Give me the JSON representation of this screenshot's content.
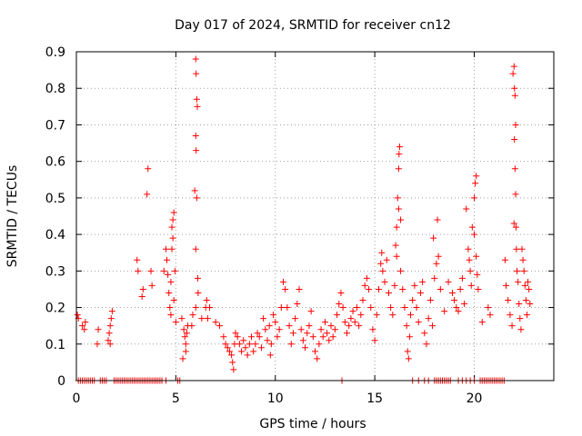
{
  "chart_data": {
    "type": "scatter",
    "title": "Day 017 of 2024, SRMTID for receiver cn12",
    "xlabel": "GPS time / hours",
    "ylabel": "SRMTID / TECUs",
    "xlim": [
      0,
      24
    ],
    "ylim": [
      0,
      0.9
    ],
    "xticks": [
      0,
      5,
      10,
      15,
      20
    ],
    "xtick_labels": [
      "0",
      "5",
      "10",
      "15",
      "20"
    ],
    "yticks": [
      0,
      0.1,
      0.2,
      0.3,
      0.4,
      0.5,
      0.6,
      0.7,
      0.8,
      0.9
    ],
    "ytick_labels": [
      "0",
      "0.1",
      "0.2",
      "0.3",
      "0.4",
      "0.5",
      "0.6",
      "0.7",
      "0.8",
      "0.9"
    ],
    "grid": true,
    "marker": "+",
    "marker_color": "#ff0000",
    "series": [
      {
        "name": "SRMTID",
        "points": [
          [
            0.05,
            0.18
          ],
          [
            0.1,
            0.17
          ],
          [
            0.3,
            0.15
          ],
          [
            0.4,
            0.14
          ],
          [
            0.45,
            0.16
          ],
          [
            1.1,
            0.14
          ],
          [
            1.05,
            0.1
          ],
          [
            1.6,
            0.11
          ],
          [
            1.65,
            0.13
          ],
          [
            1.7,
            0.15
          ],
          [
            1.75,
            0.17
          ],
          [
            1.8,
            0.19
          ],
          [
            1.7,
            0.1
          ],
          [
            3.05,
            0.33
          ],
          [
            3.1,
            0.3
          ],
          [
            3.3,
            0.23
          ],
          [
            3.35,
            0.25
          ],
          [
            3.55,
            0.51
          ],
          [
            3.6,
            0.58
          ],
          [
            3.75,
            0.3
          ],
          [
            3.8,
            0.26
          ],
          [
            4.4,
            0.3
          ],
          [
            4.5,
            0.36
          ],
          [
            4.55,
            0.33
          ],
          [
            4.6,
            0.29
          ],
          [
            4.65,
            0.24
          ],
          [
            4.7,
            0.2
          ],
          [
            4.75,
            0.18
          ],
          [
            4.8,
            0.42
          ],
          [
            4.85,
            0.44
          ],
          [
            4.9,
            0.46
          ],
          [
            4.85,
            0.39
          ],
          [
            4.8,
            0.36
          ],
          [
            4.75,
            0.27
          ],
          [
            4.9,
            0.22
          ],
          [
            4.95,
            0.3
          ],
          [
            5.0,
            0.16
          ],
          [
            5.3,
            0.17
          ],
          [
            5.4,
            0.14
          ],
          [
            5.45,
            0.12
          ],
          [
            5.5,
            0.1
          ],
          [
            5.55,
            0.13
          ],
          [
            5.6,
            0.15
          ],
          [
            5.35,
            0.06
          ],
          [
            5.5,
            0.08
          ],
          [
            6.0,
            0.88
          ],
          [
            6.02,
            0.84
          ],
          [
            6.05,
            0.77
          ],
          [
            6.08,
            0.75
          ],
          [
            6.0,
            0.67
          ],
          [
            6.02,
            0.63
          ],
          [
            5.95,
            0.52
          ],
          [
            6.05,
            0.5
          ],
          [
            6.0,
            0.36
          ],
          [
            6.1,
            0.28
          ],
          [
            6.12,
            0.24
          ],
          [
            6.0,
            0.2
          ],
          [
            5.85,
            0.18
          ],
          [
            5.8,
            0.15
          ],
          [
            6.3,
            0.17
          ],
          [
            6.5,
            0.2
          ],
          [
            6.55,
            0.22
          ],
          [
            6.6,
            0.17
          ],
          [
            6.7,
            0.2
          ],
          [
            7.0,
            0.16
          ],
          [
            7.2,
            0.15
          ],
          [
            7.4,
            0.12
          ],
          [
            7.5,
            0.1
          ],
          [
            7.6,
            0.09
          ],
          [
            7.7,
            0.08
          ],
          [
            7.8,
            0.07
          ],
          [
            7.85,
            0.05
          ],
          [
            7.9,
            0.03
          ],
          [
            7.95,
            0.1
          ],
          [
            8.0,
            0.13
          ],
          [
            8.1,
            0.12
          ],
          [
            8.2,
            0.1
          ],
          [
            8.3,
            0.08
          ],
          [
            8.4,
            0.11
          ],
          [
            8.5,
            0.09
          ],
          [
            8.6,
            0.07
          ],
          [
            8.7,
            0.1
          ],
          [
            8.8,
            0.12
          ],
          [
            8.9,
            0.08
          ],
          [
            9.0,
            0.1
          ],
          [
            9.1,
            0.13
          ],
          [
            9.2,
            0.12
          ],
          [
            9.3,
            0.09
          ],
          [
            9.4,
            0.17
          ],
          [
            9.5,
            0.14
          ],
          [
            9.6,
            0.11
          ],
          [
            9.7,
            0.15
          ],
          [
            9.75,
            0.07
          ],
          [
            9.8,
            0.1
          ],
          [
            9.9,
            0.18
          ],
          [
            10.0,
            0.16
          ],
          [
            10.1,
            0.12
          ],
          [
            10.2,
            0.14
          ],
          [
            10.3,
            0.2
          ],
          [
            10.4,
            0.27
          ],
          [
            10.5,
            0.25
          ],
          [
            10.6,
            0.2
          ],
          [
            10.7,
            0.15
          ],
          [
            10.8,
            0.1
          ],
          [
            10.9,
            0.13
          ],
          [
            11.0,
            0.17
          ],
          [
            11.1,
            0.21
          ],
          [
            11.2,
            0.25
          ],
          [
            11.3,
            0.14
          ],
          [
            11.4,
            0.11
          ],
          [
            11.5,
            0.09
          ],
          [
            11.6,
            0.13
          ],
          [
            11.7,
            0.15
          ],
          [
            11.8,
            0.19
          ],
          [
            11.9,
            0.12
          ],
          [
            12.0,
            0.08
          ],
          [
            12.1,
            0.06
          ],
          [
            12.2,
            0.1
          ],
          [
            12.3,
            0.14
          ],
          [
            12.4,
            0.12
          ],
          [
            12.5,
            0.16
          ],
          [
            12.6,
            0.13
          ],
          [
            12.7,
            0.11
          ],
          [
            12.8,
            0.15
          ],
          [
            12.9,
            0.12
          ],
          [
            13.0,
            0.14
          ],
          [
            13.1,
            0.18
          ],
          [
            13.2,
            0.21
          ],
          [
            13.3,
            0.24
          ],
          [
            13.4,
            0.2
          ],
          [
            13.5,
            0.16
          ],
          [
            13.6,
            0.13
          ],
          [
            13.7,
            0.15
          ],
          [
            13.8,
            0.17
          ],
          [
            13.9,
            0.19
          ],
          [
            14.0,
            0.16
          ],
          [
            14.1,
            0.2
          ],
          [
            14.2,
            0.15
          ],
          [
            14.3,
            0.18
          ],
          [
            14.4,
            0.22
          ],
          [
            14.5,
            0.26
          ],
          [
            14.6,
            0.28
          ],
          [
            14.7,
            0.25
          ],
          [
            14.8,
            0.2
          ],
          [
            14.9,
            0.14
          ],
          [
            15.0,
            0.11
          ],
          [
            15.1,
            0.18
          ],
          [
            15.2,
            0.25
          ],
          [
            15.3,
            0.32
          ],
          [
            15.35,
            0.35
          ],
          [
            15.4,
            0.3
          ],
          [
            15.5,
            0.27
          ],
          [
            15.6,
            0.33
          ],
          [
            15.7,
            0.24
          ],
          [
            15.8,
            0.2
          ],
          [
            15.9,
            0.18
          ],
          [
            16.0,
            0.26
          ],
          [
            16.05,
            0.37
          ],
          [
            16.1,
            0.42
          ],
          [
            16.15,
            0.5
          ],
          [
            16.2,
            0.58
          ],
          [
            16.22,
            0.62
          ],
          [
            16.25,
            0.64
          ],
          [
            16.2,
            0.47
          ],
          [
            16.3,
            0.44
          ],
          [
            16.1,
            0.34
          ],
          [
            16.3,
            0.3
          ],
          [
            16.4,
            0.25
          ],
          [
            16.5,
            0.2
          ],
          [
            16.6,
            0.15
          ],
          [
            16.65,
            0.08
          ],
          [
            16.7,
            0.06
          ],
          [
            16.75,
            0.12
          ],
          [
            16.8,
            0.18
          ],
          [
            16.9,
            0.22
          ],
          [
            17.0,
            0.26
          ],
          [
            17.1,
            0.2
          ],
          [
            17.2,
            0.16
          ],
          [
            17.3,
            0.24
          ],
          [
            17.4,
            0.27
          ],
          [
            17.5,
            0.13
          ],
          [
            17.6,
            0.1
          ],
          [
            17.7,
            0.17
          ],
          [
            17.8,
            0.22
          ],
          [
            17.9,
            0.15
          ],
          [
            17.95,
            0.39
          ],
          [
            18.0,
            0.28
          ],
          [
            18.1,
            0.32
          ],
          [
            18.15,
            0.44
          ],
          [
            18.2,
            0.34
          ],
          [
            18.3,
            0.25
          ],
          [
            18.5,
            0.19
          ],
          [
            18.7,
            0.27
          ],
          [
            18.9,
            0.24
          ],
          [
            19.0,
            0.22
          ],
          [
            19.1,
            0.2
          ],
          [
            19.2,
            0.19
          ],
          [
            19.3,
            0.25
          ],
          [
            19.4,
            0.28
          ],
          [
            19.5,
            0.21
          ],
          [
            19.6,
            0.47
          ],
          [
            19.7,
            0.36
          ],
          [
            19.75,
            0.33
          ],
          [
            19.8,
            0.3
          ],
          [
            19.85,
            0.26
          ],
          [
            19.9,
            0.42
          ],
          [
            20.0,
            0.5
          ],
          [
            20.05,
            0.54
          ],
          [
            20.1,
            0.56
          ],
          [
            20.0,
            0.4
          ],
          [
            20.1,
            0.34
          ],
          [
            20.15,
            0.29
          ],
          [
            20.2,
            0.25
          ],
          [
            20.4,
            0.16
          ],
          [
            20.7,
            0.2
          ],
          [
            20.8,
            0.18
          ],
          [
            21.55,
            0.33
          ],
          [
            21.6,
            0.26
          ],
          [
            21.7,
            0.22
          ],
          [
            21.8,
            0.18
          ],
          [
            21.9,
            0.15
          ],
          [
            21.95,
            0.84
          ],
          [
            22.0,
            0.86
          ],
          [
            22.02,
            0.8
          ],
          [
            22.05,
            0.78
          ],
          [
            22.08,
            0.7
          ],
          [
            22.02,
            0.66
          ],
          [
            22.05,
            0.58
          ],
          [
            22.08,
            0.51
          ],
          [
            22.0,
            0.43
          ],
          [
            22.1,
            0.42
          ],
          [
            22.12,
            0.36
          ],
          [
            22.15,
            0.3
          ],
          [
            22.2,
            0.27
          ],
          [
            22.25,
            0.21
          ],
          [
            22.3,
            0.17
          ],
          [
            22.35,
            0.14
          ],
          [
            22.4,
            0.36
          ],
          [
            22.45,
            0.33
          ],
          [
            22.5,
            0.3
          ],
          [
            22.55,
            0.26
          ],
          [
            22.6,
            0.22
          ],
          [
            22.65,
            0.18
          ],
          [
            22.7,
            0.27
          ],
          [
            22.75,
            0.25
          ],
          [
            22.8,
            0.21
          ],
          [
            0.1,
            0.0
          ],
          [
            0.2,
            0.0
          ],
          [
            0.3,
            0.0
          ],
          [
            0.4,
            0.0
          ],
          [
            0.5,
            0.0
          ],
          [
            0.6,
            0.0
          ],
          [
            0.7,
            0.0
          ],
          [
            0.8,
            0.0
          ],
          [
            0.9,
            0.0
          ],
          [
            1.2,
            0.0
          ],
          [
            1.3,
            0.0
          ],
          [
            1.4,
            0.0
          ],
          [
            1.5,
            0.0
          ],
          [
            1.9,
            0.0
          ],
          [
            2.0,
            0.0
          ],
          [
            2.1,
            0.0
          ],
          [
            2.2,
            0.0
          ],
          [
            2.3,
            0.0
          ],
          [
            2.4,
            0.0
          ],
          [
            2.5,
            0.0
          ],
          [
            2.6,
            0.0
          ],
          [
            2.7,
            0.0
          ],
          [
            2.8,
            0.0
          ],
          [
            2.9,
            0.0
          ],
          [
            3.0,
            0.0
          ],
          [
            3.1,
            0.0
          ],
          [
            3.2,
            0.0
          ],
          [
            3.3,
            0.0
          ],
          [
            3.4,
            0.0
          ],
          [
            3.5,
            0.0
          ],
          [
            3.6,
            0.0
          ],
          [
            3.7,
            0.0
          ],
          [
            3.8,
            0.0
          ],
          [
            3.9,
            0.0
          ],
          [
            4.0,
            0.0
          ],
          [
            4.1,
            0.0
          ],
          [
            4.2,
            0.0
          ],
          [
            4.3,
            0.0
          ],
          [
            4.5,
            0.0
          ],
          [
            5.1,
            0.0
          ],
          [
            5.2,
            0.0
          ],
          [
            13.35,
            0.0
          ],
          [
            16.9,
            0.0
          ],
          [
            17.2,
            0.0
          ],
          [
            17.5,
            0.0
          ],
          [
            17.7,
            0.0
          ],
          [
            18.0,
            0.0
          ],
          [
            18.1,
            0.0
          ],
          [
            18.2,
            0.0
          ],
          [
            18.3,
            0.0
          ],
          [
            18.4,
            0.0
          ],
          [
            18.5,
            0.0
          ],
          [
            18.6,
            0.0
          ],
          [
            18.7,
            0.0
          ],
          [
            18.8,
            0.0
          ],
          [
            19.2,
            0.0
          ],
          [
            19.4,
            0.0
          ],
          [
            19.6,
            0.0
          ],
          [
            19.8,
            0.0
          ],
          [
            20.0,
            0.0
          ],
          [
            20.3,
            0.0
          ],
          [
            20.4,
            0.0
          ],
          [
            20.5,
            0.0
          ],
          [
            20.6,
            0.0
          ],
          [
            20.7,
            0.0
          ],
          [
            20.8,
            0.0
          ],
          [
            20.9,
            0.0
          ],
          [
            21.0,
            0.0
          ],
          [
            21.1,
            0.0
          ],
          [
            21.2,
            0.0
          ],
          [
            21.3,
            0.0
          ],
          [
            21.4,
            0.0
          ],
          [
            21.5,
            0.0
          ]
        ]
      }
    ]
  }
}
